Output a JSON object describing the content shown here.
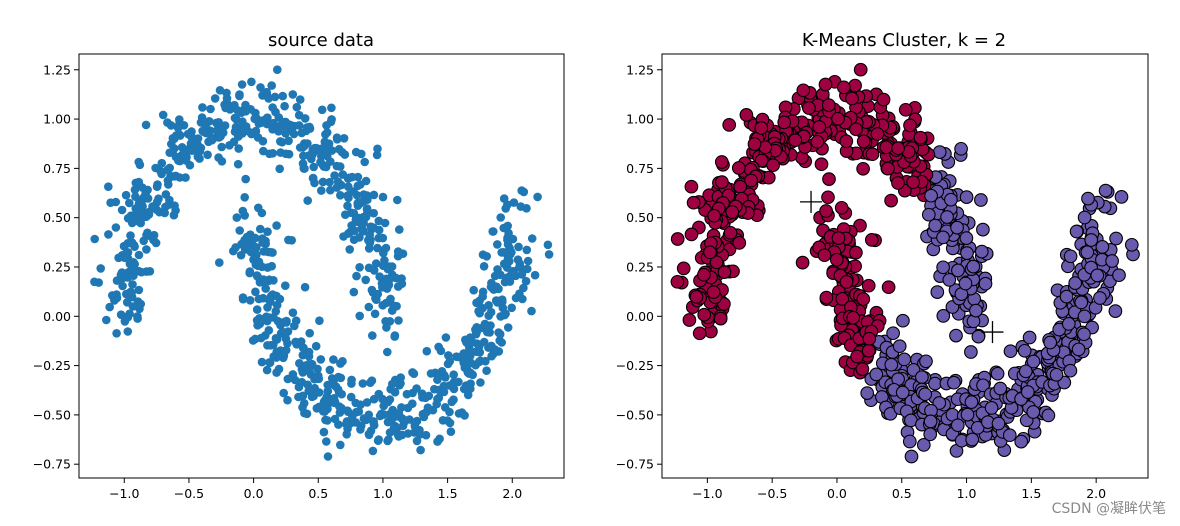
{
  "watermark": "CSDN @凝眸伏笔",
  "colors": {
    "raw_points": "#1f77b4",
    "cluster_0": "#9e0142",
    "cluster_1": "#6a5aad",
    "marker_edge": "#000000",
    "centroid_marker": "#000000"
  },
  "chart_data": [
    {
      "type": "scatter",
      "title": "source data",
      "xlim": [
        -1.35,
        2.4
      ],
      "ylim": [
        -0.82,
        1.33
      ],
      "x_ticks": [
        -1.0,
        -0.5,
        0.0,
        0.5,
        1.0,
        1.5,
        2.0
      ],
      "x_tick_labels": [
        "−1.0",
        "−0.5",
        "0.0",
        "0.5",
        "1.0",
        "1.5",
        "2.0"
      ],
      "y_ticks": [
        -0.75,
        -0.5,
        -0.25,
        0.0,
        0.25,
        0.5,
        0.75,
        1.0,
        1.25
      ],
      "y_tick_labels": [
        "−0.75",
        "−0.50",
        "−0.25",
        "0.00",
        "0.25",
        "0.50",
        "0.75",
        "1.00",
        "1.25"
      ],
      "grid": false,
      "dataset": "two interleaving half-moons",
      "n_points": 1000,
      "noise": 0.1,
      "upper_moon": {
        "center": [
          0.0,
          0.0
        ],
        "radius": 1.0,
        "theta_range_deg": [
          0,
          180
        ]
      },
      "lower_moon": {
        "center": [
          1.0,
          0.5
        ],
        "radius": 1.0,
        "theta_range_deg": [
          180,
          360
        ]
      }
    },
    {
      "type": "scatter",
      "title": "K-Means Cluster, k = 2",
      "xlim": [
        -1.35,
        2.4
      ],
      "ylim": [
        -0.82,
        1.33
      ],
      "x_ticks": [
        -1.0,
        -0.5,
        0.0,
        0.5,
        1.0,
        1.5,
        2.0
      ],
      "x_tick_labels": [
        "−1.0",
        "−0.5",
        "0.0",
        "0.5",
        "1.0",
        "1.5",
        "2.0"
      ],
      "y_ticks": [
        -0.75,
        -0.5,
        -0.25,
        0.0,
        0.25,
        0.5,
        0.75,
        1.0,
        1.25
      ],
      "y_tick_labels": [
        "−0.75",
        "−0.50",
        "−0.25",
        "0.00",
        "0.25",
        "0.50",
        "0.75",
        "1.00",
        "1.25"
      ],
      "grid": false,
      "k": 2,
      "centroids": [
        [
          -0.2,
          0.58
        ],
        [
          1.2,
          -0.08
        ]
      ],
      "centroid_marker": "+"
    }
  ]
}
